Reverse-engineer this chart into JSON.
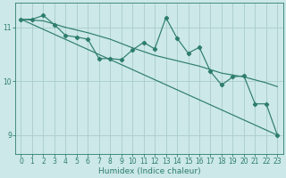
{
  "xlabel": "Humidex (Indice chaleur)",
  "background_color": "#cce8e8",
  "grid_color": "#aacccc",
  "line_color": "#2e7d6e",
  "xlim": [
    -0.5,
    23.5
  ],
  "ylim": [
    8.65,
    11.45
  ],
  "yticks": [
    9,
    10,
    11
  ],
  "xticks": [
    0,
    1,
    2,
    3,
    4,
    5,
    6,
    7,
    8,
    9,
    10,
    11,
    12,
    13,
    14,
    15,
    16,
    17,
    18,
    19,
    20,
    21,
    22,
    23
  ],
  "series1_x": [
    0,
    1,
    2,
    3,
    4,
    5,
    6,
    7,
    8,
    9,
    10,
    11,
    12,
    13,
    14,
    15,
    16,
    17,
    18,
    19,
    20,
    21,
    22,
    23
  ],
  "series1_y": [
    11.15,
    11.15,
    11.22,
    11.05,
    10.85,
    10.82,
    10.78,
    10.42,
    10.42,
    10.4,
    10.58,
    10.72,
    10.6,
    11.18,
    10.8,
    10.52,
    10.63,
    10.18,
    9.93,
    10.08,
    10.1,
    9.58,
    9.58,
    9.0
  ],
  "series2_x": [
    0,
    23
  ],
  "series2_y": [
    11.15,
    9.0
  ],
  "series3_x": [
    0,
    2,
    4,
    6,
    8,
    10,
    12,
    14,
    16,
    18,
    20,
    22,
    23
  ],
  "series3_y": [
    11.15,
    11.12,
    11.0,
    10.9,
    10.78,
    10.62,
    10.48,
    10.38,
    10.28,
    10.15,
    10.08,
    9.97,
    9.9
  ]
}
